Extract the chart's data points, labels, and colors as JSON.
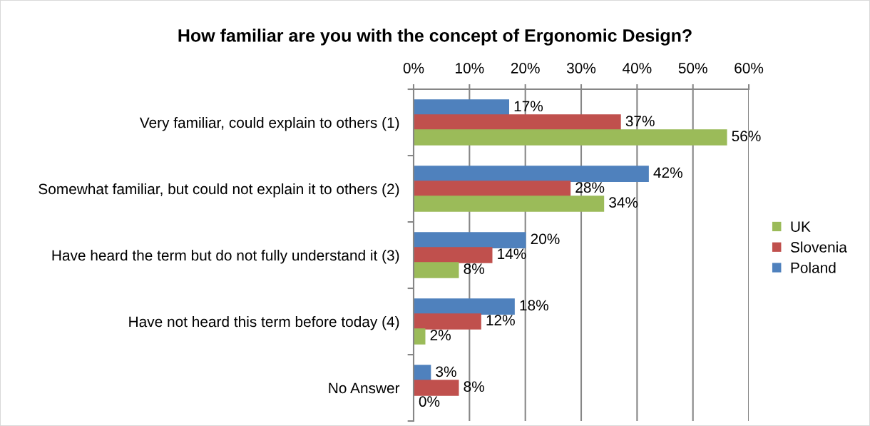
{
  "chart_data": {
    "type": "bar",
    "orientation": "horizontal",
    "title": "How familiar are you with the concept of Ergonomic Design?",
    "categories": [
      "Very familiar, could explain to others (1)",
      "Somewhat familiar, but could not explain it to others (2)",
      "Have heard the term but do not fully understand it (3)",
      "Have not heard this term before today (4)",
      "No Answer"
    ],
    "series": [
      {
        "name": "Poland",
        "color": "#4f81bd",
        "values": [
          17,
          42,
          20,
          18,
          3
        ],
        "value_labels": [
          "17%",
          "42%",
          "20%",
          "18%",
          "3%"
        ]
      },
      {
        "name": "Slovenia",
        "color": "#c0504d",
        "values": [
          37,
          28,
          14,
          12,
          8
        ],
        "value_labels": [
          "37%",
          "28%",
          "14%",
          "12%",
          "8%"
        ]
      },
      {
        "name": "UK",
        "color": "#9bbb59",
        "values": [
          56,
          34,
          8,
          2,
          0
        ],
        "value_labels": [
          "56%",
          "34%",
          "8%",
          "2%",
          "0%"
        ]
      }
    ],
    "xlim": [
      0,
      60
    ],
    "xticks": [
      {
        "value": 0,
        "label": "0%"
      },
      {
        "value": 10,
        "label": "10%"
      },
      {
        "value": 20,
        "label": "20%"
      },
      {
        "value": 30,
        "label": "30%"
      },
      {
        "value": 40,
        "label": "40%"
      },
      {
        "value": 50,
        "label": "50%"
      },
      {
        "value": 60,
        "label": "60%"
      }
    ],
    "grid": "x",
    "legend": "right"
  }
}
